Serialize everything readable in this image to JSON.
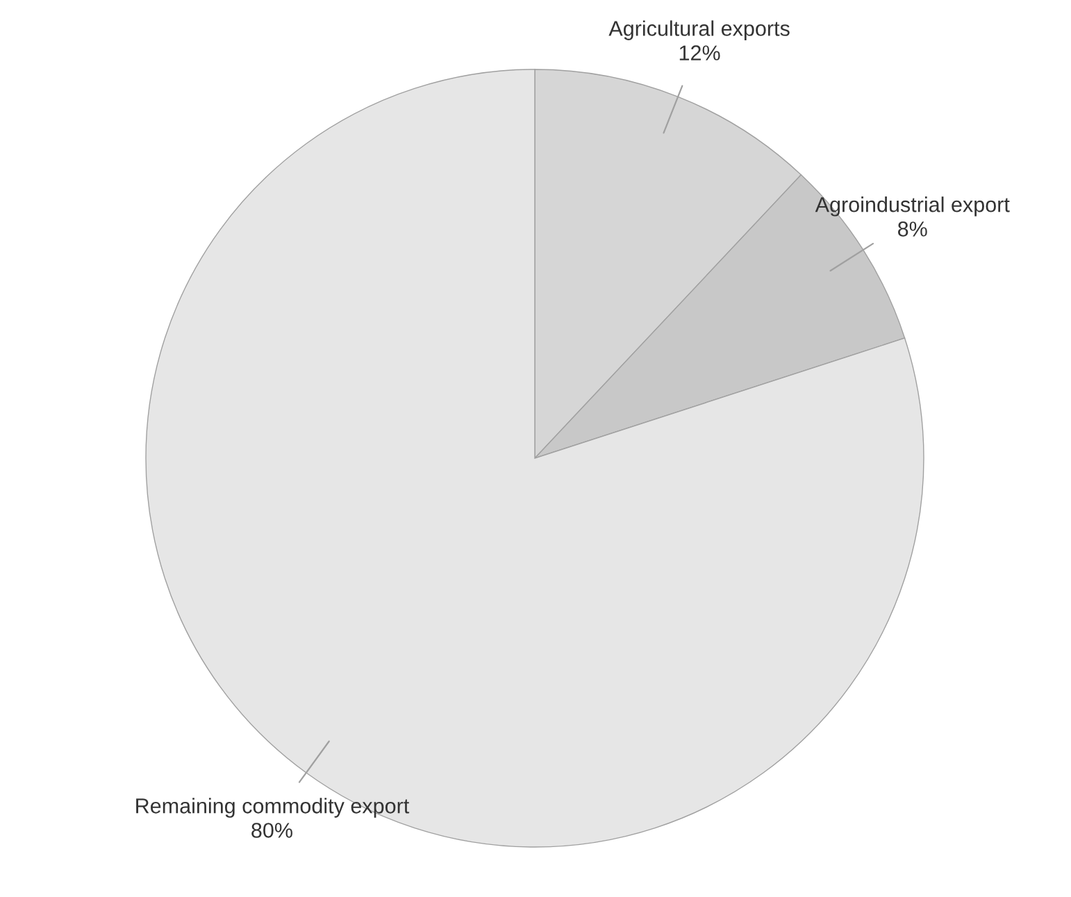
{
  "chart_data": {
    "type": "pie",
    "categories": [
      "Agricultural exports",
      "Agroindustrial export",
      "Remaining commodity export"
    ],
    "values": [
      12,
      8,
      80
    ],
    "colors": [
      "#d6d6d6",
      "#c8c8c8",
      "#e6e6e6"
    ],
    "value_labels": [
      "12%",
      "8%",
      "80%"
    ]
  }
}
